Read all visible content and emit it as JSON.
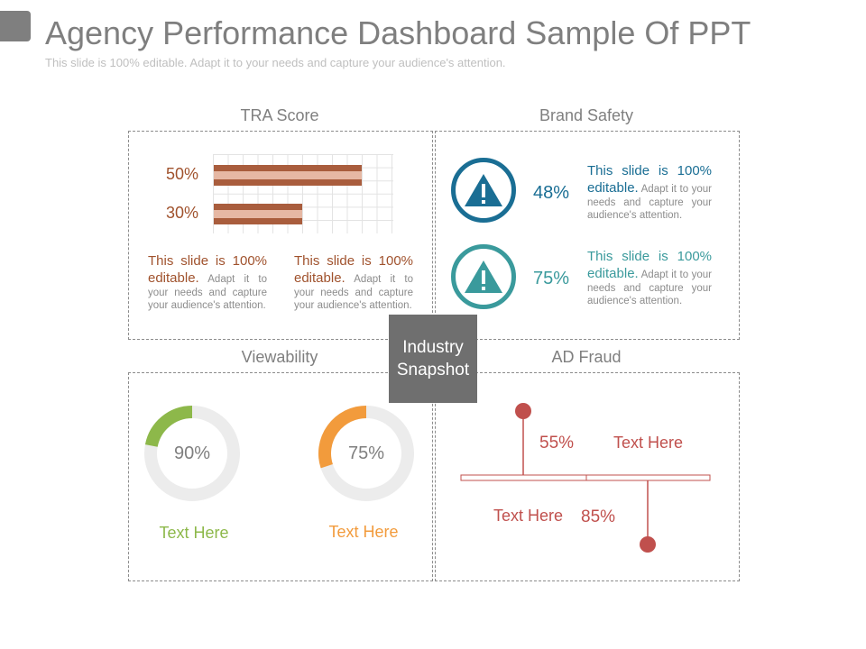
{
  "header": {
    "title": "Agency Performance Dashboard Sample Of PPT",
    "subtitle": "This slide is 100% editable. Adapt it to your needs and capture your audience's attention."
  },
  "center_label": "Industry Snapshot",
  "tra_score": {
    "label": "TRA Score",
    "bars": [
      {
        "label": "50%",
        "value": 50
      },
      {
        "label": "30%",
        "value": 30
      }
    ],
    "paragraphs": [
      {
        "lead": "This slide is 100% editable.",
        "rest": "Adapt it to your needs and capture your audience's attention."
      },
      {
        "lead": "This slide is 100% editable.",
        "rest": "Adapt it to your needs and capture your audience's attention."
      }
    ],
    "color": "#a95d3d"
  },
  "brand_safety": {
    "label": "Brand Safety",
    "items": [
      {
        "pct": "48%",
        "lead": "This slide is 100% editable.",
        "rest": "Adapt it to your needs and capture your audience's attention.",
        "icon": "warning-icon",
        "color": "#1a6e94"
      },
      {
        "pct": "75%",
        "lead": "This slide is 100% editable.",
        "rest": "Adapt it to your needs and capture your audience's attention.",
        "icon": "warning-icon",
        "color": "#3a9a9c"
      }
    ]
  },
  "viewability": {
    "label": "Viewability",
    "donuts": [
      {
        "value_label": "90%",
        "value": 90,
        "caption": "Text Here",
        "color": "#8db84a"
      },
      {
        "value_label": "75%",
        "value": 75,
        "caption": "Text Here",
        "color": "#f29b3c"
      }
    ]
  },
  "ad_fraud": {
    "label": "AD Fraud",
    "items": [
      {
        "pct": "55%",
        "text": "Text Here"
      },
      {
        "pct": "85%",
        "text": "Text Here"
      }
    ],
    "color": "#c0504d"
  }
}
